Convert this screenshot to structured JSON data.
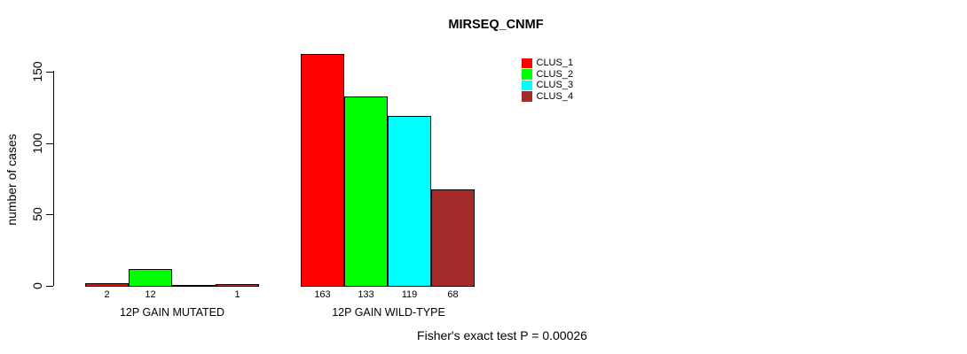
{
  "title": "MIRSEQ_CNMF",
  "y_axis_label": "number of cases",
  "footnote": "Fisher's exact test P = 0.00026",
  "legend": {
    "items": [
      {
        "label": "CLUS_1",
        "color": "#FF0000"
      },
      {
        "label": "CLUS_2",
        "color": "#00FF00"
      },
      {
        "label": "CLUS_3",
        "color": "#00FFFF"
      },
      {
        "label": "CLUS_4",
        "color": "#A52A2A"
      }
    ]
  },
  "chart_data": {
    "type": "bar",
    "title": "MIRSEQ_CNMF",
    "xlabel": "",
    "ylabel": "number of cases",
    "ylim": [
      0,
      165
    ],
    "yticks": [
      0,
      50,
      100,
      150
    ],
    "grid": false,
    "legend_position": "top-right",
    "categories": [
      "12P GAIN MUTATED",
      "12P GAIN WILD-TYPE"
    ],
    "series": [
      {
        "name": "CLUS_1",
        "color": "#FF0000",
        "values": [
          2,
          163
        ]
      },
      {
        "name": "CLUS_2",
        "color": "#00FF00",
        "values": [
          12,
          133
        ]
      },
      {
        "name": "CLUS_3",
        "color": "#00FFFF",
        "values": [
          0,
          119
        ]
      },
      {
        "name": "CLUS_4",
        "color": "#A52A2A",
        "values": [
          1,
          68
        ]
      }
    ],
    "bar_value_labels": [
      [
        "2",
        "12",
        "",
        "1"
      ],
      [
        "163",
        "133",
        "119",
        "68"
      ]
    ],
    "annotation": "Fisher's exact test P = 0.00026"
  }
}
